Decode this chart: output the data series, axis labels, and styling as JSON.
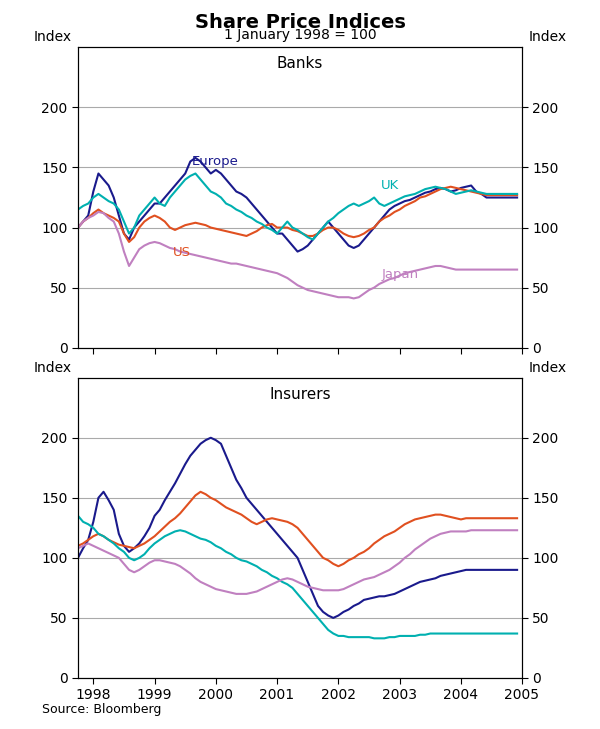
{
  "title": "Share Price Indices",
  "subtitle": "1 January 1998 = 100",
  "panel1_title": "Banks",
  "panel2_title": "Insurers",
  "source": "Source: Bloomberg",
  "ylabel_left": "Index",
  "ylabel_right": "Index",
  "ylim": [
    0,
    250
  ],
  "yticks": [
    0,
    50,
    100,
    150,
    200
  ],
  "colors": {
    "europe": "#1a1a8c",
    "us": "#e05020",
    "uk": "#00b0b0",
    "japan": "#c080c0"
  },
  "line_width": 1.5
}
